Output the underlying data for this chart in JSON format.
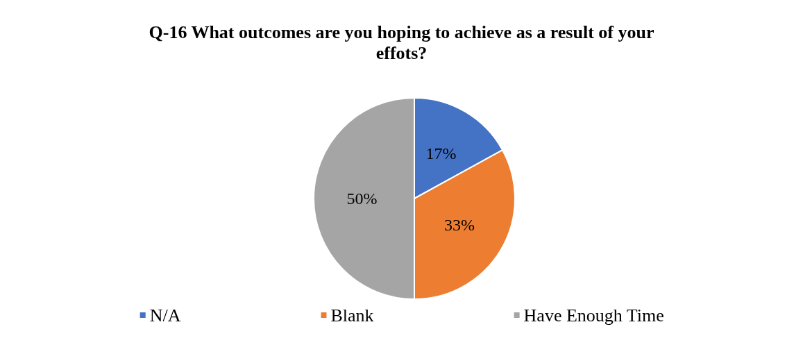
{
  "chart_data": {
    "type": "pie",
    "title": "Q-16 What outcomes are you hoping to achieve as a result of your\neffots?",
    "categories": [
      "N/A",
      "Blank",
      "Have Enough Time"
    ],
    "values": [
      17,
      33,
      50
    ],
    "value_labels": [
      "17%",
      "33%",
      "50%"
    ],
    "colors": [
      "#4472c4",
      "#ed7d31",
      "#a5a5a5"
    ],
    "legend": "bottom"
  }
}
